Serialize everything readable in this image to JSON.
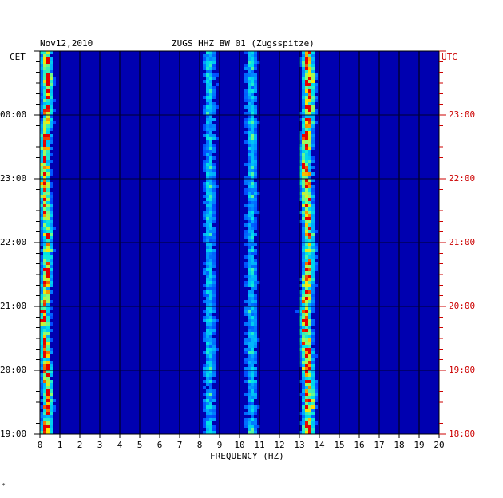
{
  "header": {
    "date": "Nov12,2010",
    "station": "ZUGS HHZ BW 01 (Zugsspitze)"
  },
  "chart_data": {
    "type": "heatmap",
    "title": "ZUGS HHZ BW 01 (Zugsspitze)",
    "date": "Nov12,2010",
    "xlabel": "FREQUENCY (HZ)",
    "xlim": [
      0,
      20
    ],
    "x_ticks": [
      "0",
      "1",
      "2",
      "3",
      "4",
      "5",
      "6",
      "7",
      "8",
      "9",
      "10",
      "11",
      "12",
      "13",
      "14",
      "15",
      "16",
      "17",
      "18",
      "19",
      "20"
    ],
    "left_axis_label": "CET",
    "right_axis_label": "UTC",
    "cet_ticks": [
      "19:00",
      "20:00",
      "21:00",
      "22:00",
      "23:00",
      "00:00"
    ],
    "utc_ticks": [
      "18:00",
      "19:00",
      "20:00",
      "21:00",
      "22:00",
      "23:00"
    ],
    "grid": true,
    "colors": {
      "background": "#0000b0",
      "frame": "#000000",
      "cet_text": "#000000",
      "utc_text": "#cc0000"
    },
    "features": [
      {
        "band_hz": [
          13.1,
          13.8
        ],
        "peak_hz": 13.4,
        "level": "strong"
      },
      {
        "band_hz": [
          0.1,
          0.7
        ],
        "peak_hz": 0.3,
        "level": "strong"
      },
      {
        "band_hz": [
          8.2,
          8.9
        ],
        "peak_hz": 8.5,
        "level": "weak"
      },
      {
        "band_hz": [
          10.3,
          11.0
        ],
        "peak_hz": 10.6,
        "level": "weak"
      }
    ]
  },
  "footer": {
    "mark": "*"
  }
}
